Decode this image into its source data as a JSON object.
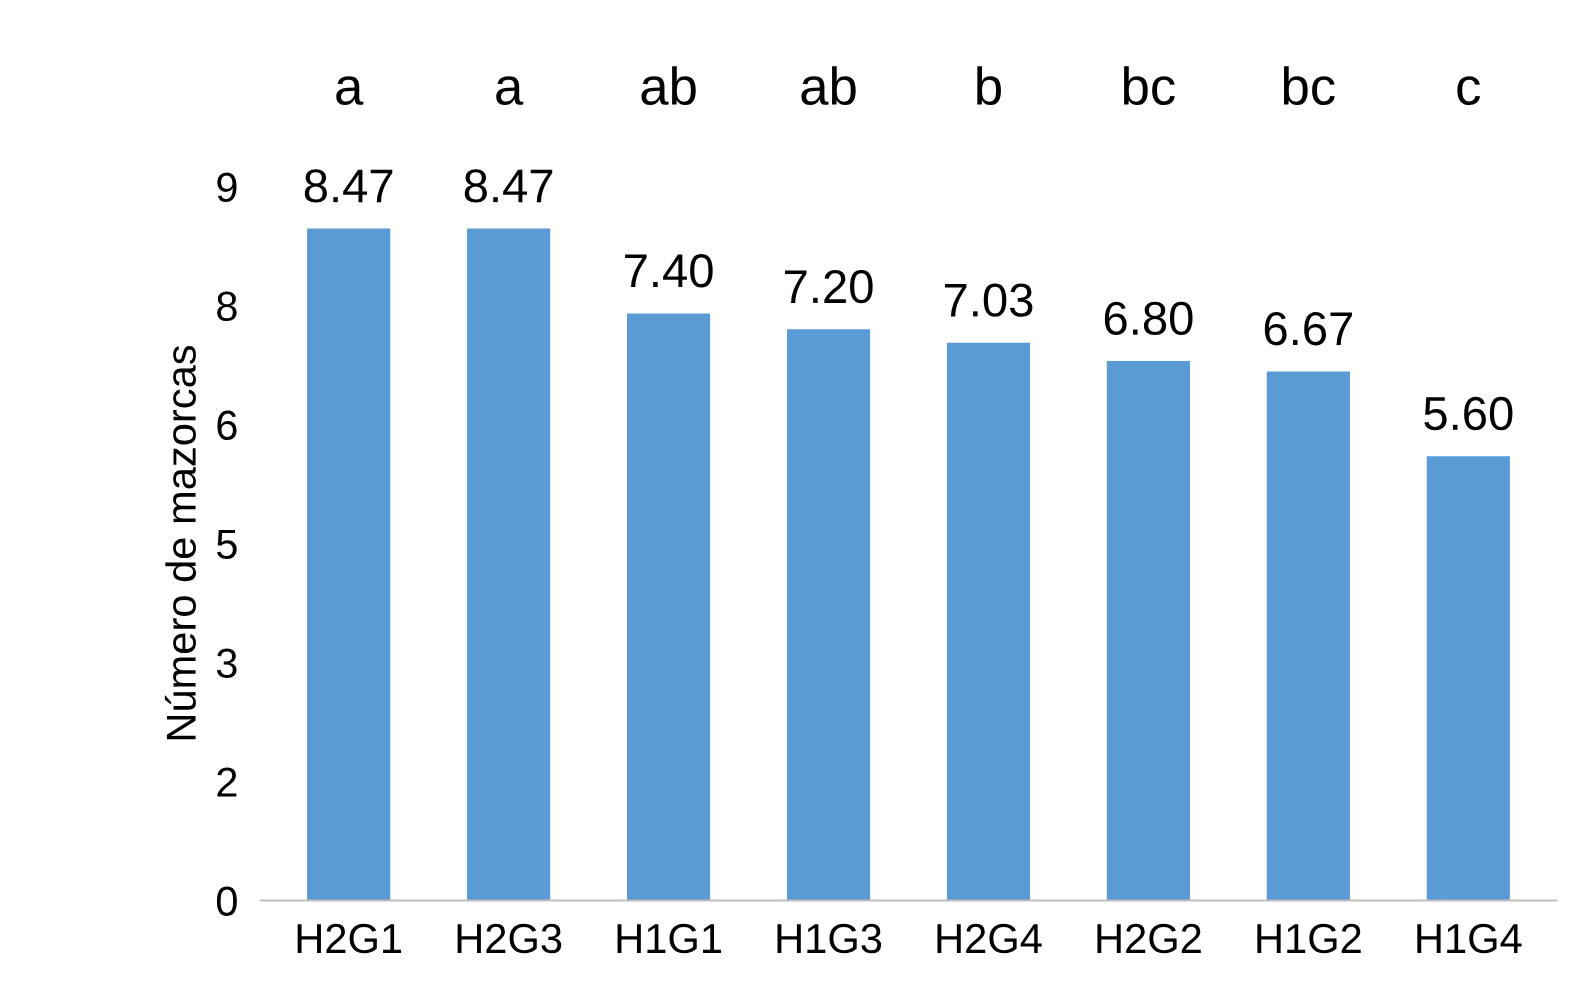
{
  "chart_data": {
    "type": "bar",
    "ylabel": "Número de mazorcas",
    "categories": [
      "H2G1",
      "H2G3",
      "H1G1",
      "H1G3",
      "H2G4",
      "H2G2",
      "H1G2",
      "H1G4"
    ],
    "values": [
      8.47,
      8.47,
      7.4,
      7.2,
      7.03,
      6.8,
      6.67,
      5.6
    ],
    "value_labels": [
      "8.47",
      "8.47",
      "7.40",
      "7.20",
      "7.03",
      "6.80",
      "6.67",
      "5.60"
    ],
    "color": "#5b9bd5",
    "ylim": [
      0,
      9
    ],
    "yticks": [
      0,
      {
        "value": 1.5,
        "label": "2"
      },
      3,
      {
        "value": 4.5,
        "label": "5"
      },
      6,
      {
        "value": 7.5,
        "label": "8"
      },
      9
    ],
    "annotations": [
      "a",
      "a",
      "ab",
      "ab",
      "b",
      "bc",
      "bc",
      "c"
    ],
    "grid": false,
    "legend": false
  }
}
